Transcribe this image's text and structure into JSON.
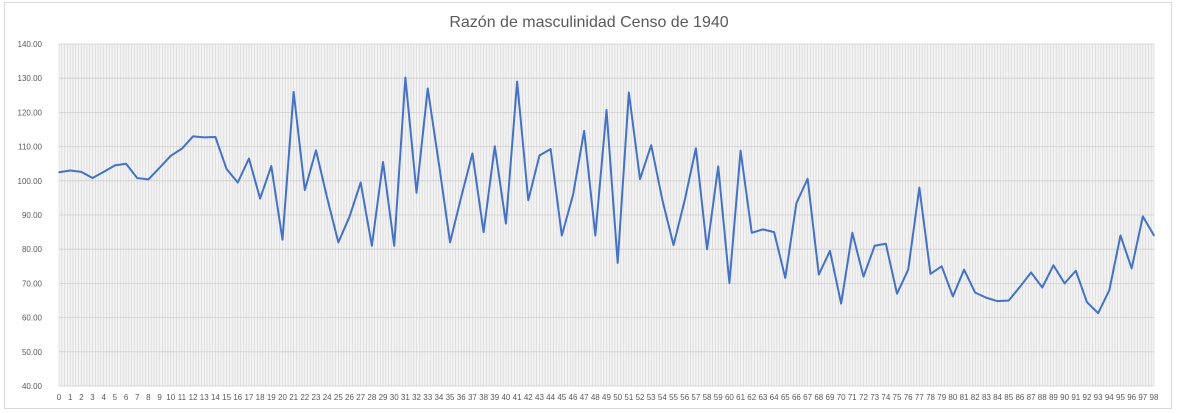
{
  "chart_data": {
    "type": "line",
    "title": "Razón de masculinidad Censo de 1940",
    "xlabel": "",
    "ylabel": "",
    "categories": [
      "0",
      "1",
      "2",
      "3",
      "4",
      "5",
      "6",
      "7",
      "8",
      "9",
      "10",
      "11",
      "12",
      "13",
      "14",
      "15",
      "16",
      "17",
      "18",
      "19",
      "20",
      "21",
      "22",
      "23",
      "24",
      "25",
      "26",
      "27",
      "28",
      "29",
      "30",
      "31",
      "32",
      "33",
      "34",
      "35",
      "36",
      "37",
      "38",
      "39",
      "40",
      "41",
      "42",
      "43",
      "44",
      "45",
      "46",
      "47",
      "48",
      "49",
      "50",
      "51",
      "52",
      "53",
      "54",
      "55",
      "56",
      "57",
      "58",
      "59",
      "60",
      "61",
      "62",
      "63",
      "64",
      "65",
      "66",
      "67",
      "68",
      "69",
      "70",
      "71",
      "72",
      "73",
      "74",
      "75",
      "76",
      "77",
      "78",
      "79",
      "80",
      "81",
      "82",
      "83",
      "84",
      "85",
      "86",
      "87",
      "88",
      "89",
      "90",
      "91",
      "92",
      "93",
      "94",
      "95",
      "96",
      "97",
      "98"
    ],
    "series": [
      {
        "color": "#4472c4",
        "values": [
          102.5,
          103,
          102.6,
          100.8,
          102.6,
          104.5,
          105,
          100.8,
          100.4,
          103.8,
          107.3,
          109.4,
          113,
          112.7,
          112.8,
          103.4,
          99.5,
          106.5,
          94.8,
          104.3,
          82.8,
          126,
          97.3,
          108.9,
          95,
          82,
          89.5,
          99.5,
          81,
          105.5,
          81,
          130.2,
          96.5,
          127,
          105,
          82,
          95.3,
          108,
          85,
          110.1,
          87.5,
          129,
          94.3,
          107.4,
          109.3,
          84,
          95.8,
          114.6,
          84,
          120.7,
          76,
          125.8,
          100.5,
          110.4,
          94.4,
          81.2,
          94.3,
          109.5,
          80,
          104.2,
          70.1,
          108.8,
          84.8,
          85.8,
          85,
          71.6,
          93.5,
          100.6,
          72.6,
          79.5,
          64.1,
          84.8,
          72,
          81,
          81.6,
          67,
          74,
          98,
          72.8,
          75,
          66.2,
          74,
          67.3,
          65.8,
          64.8,
          65,
          69,
          73.2,
          68.8,
          75.3,
          70,
          73.7,
          64.5,
          61.3,
          68,
          84,
          74.4,
          89.6,
          84
        ]
      }
    ],
    "ylim": [
      40,
      140
    ],
    "yticks": [
      "40.00",
      "50.00",
      "60.00",
      "70.00",
      "80.00",
      "90.00",
      "100.00",
      "110.00",
      "120.00",
      "130.00",
      "140.00"
    ],
    "grid": true,
    "legend": "none"
  }
}
